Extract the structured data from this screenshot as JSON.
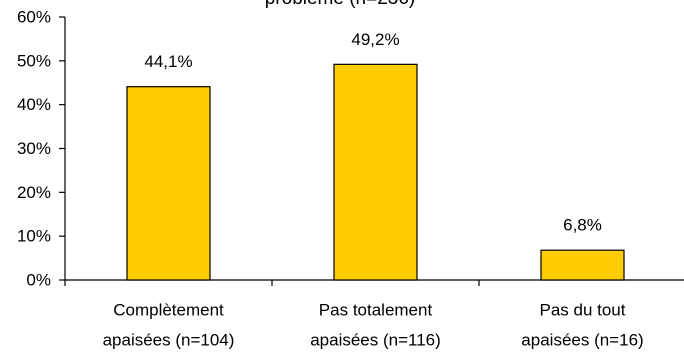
{
  "chart_data": {
    "type": "bar",
    "title": "problème (n=236)",
    "categories": [
      [
        "Complètement",
        "apaisées (n=104)"
      ],
      [
        "Pas totalement",
        "apaisées (n=116)"
      ],
      [
        "Pas du tout",
        "apaisées (n=16)"
      ]
    ],
    "values": [
      44.1,
      49.2,
      6.8
    ],
    "value_labels": [
      "44,1%",
      "49,2%",
      "6,8%"
    ],
    "y_ticks": [
      "0%",
      "10%",
      "20%",
      "30%",
      "40%",
      "50%",
      "60%"
    ],
    "ylim": [
      0,
      60
    ],
    "xlabel": "",
    "ylabel": "",
    "grid": false,
    "bar_color": "#FFCC00",
    "bar_edge_color": "#000000"
  }
}
